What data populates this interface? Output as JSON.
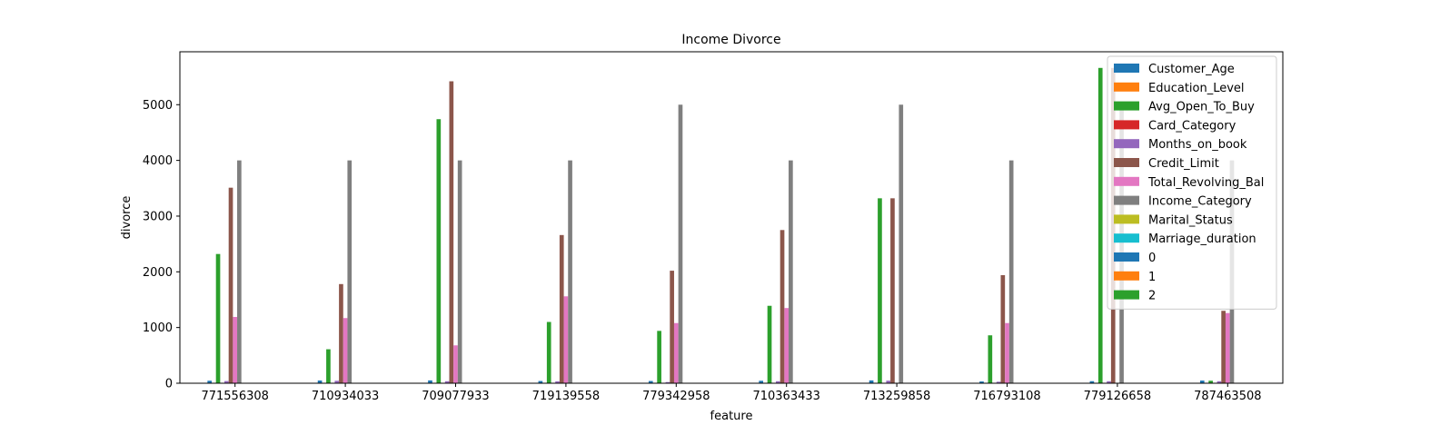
{
  "chart_data": {
    "type": "bar",
    "title": "Income Divorce",
    "xlabel": "feature",
    "ylabel": "divorce",
    "ylim": [
      0,
      5950
    ],
    "yticks": [
      0,
      1000,
      2000,
      3000,
      4000,
      5000
    ],
    "grid": false,
    "legend_position": "top-right",
    "categories": [
      "771556308",
      "710934033",
      "709077933",
      "719139558",
      "779342958",
      "710363433",
      "713259858",
      "716793108",
      "779126658",
      "787463508"
    ],
    "series": [
      {
        "name": "Customer_Age",
        "color": "#1f77b4",
        "values": [
          45,
          49,
          51,
          40,
          40,
          44,
          51,
          32,
          37,
          48
        ]
      },
      {
        "name": "Education_Level",
        "color": "#ff7f0e",
        "values": [
          2,
          3,
          3,
          2,
          1,
          1,
          3,
          2,
          2,
          1
        ]
      },
      {
        "name": "Avg_Open_To_Buy",
        "color": "#2ca02c",
        "values": [
          2320,
          610,
          4740,
          1100,
          940,
          1390,
          3320,
          860,
          5660,
          45
        ]
      },
      {
        "name": "Card_Category",
        "color": "#d62728",
        "values": [
          1,
          1,
          1,
          1,
          1,
          1,
          1,
          1,
          1,
          1
        ]
      },
      {
        "name": "Months_on_book",
        "color": "#9467bd",
        "values": [
          39,
          44,
          36,
          34,
          21,
          36,
          46,
          27,
          36,
          36
        ]
      },
      {
        "name": "Credit_Limit",
        "color": "#8c564b",
        "values": [
          3510,
          1780,
          5420,
          2660,
          2020,
          2750,
          3320,
          1940,
          5660,
          1300
        ]
      },
      {
        "name": "Total_Revolving_Bal",
        "color": "#e377c2",
        "values": [
          1190,
          1170,
          680,
          1560,
          1080,
          1350,
          0,
          1080,
          0,
          1260
        ]
      },
      {
        "name": "Income_Category",
        "color": "#7f7f7f",
        "values": [
          4000,
          4000,
          4000,
          4000,
          5000,
          4000,
          5000,
          4000,
          5000,
          4000
        ]
      },
      {
        "name": "Marital_Status",
        "color": "#bcbd22",
        "values": [
          0,
          0,
          0,
          0,
          0,
          0,
          0,
          0,
          0,
          0
        ]
      },
      {
        "name": "Marriage_duration",
        "color": "#17becf",
        "values": [
          0,
          0,
          0,
          0,
          0,
          0,
          0,
          0,
          0,
          0
        ]
      },
      {
        "name": "0",
        "color": "#1f77b4",
        "values": [
          0,
          0,
          0,
          0,
          0,
          0,
          0,
          0,
          0,
          0
        ]
      },
      {
        "name": "1",
        "color": "#ff7f0e",
        "values": [
          0,
          0,
          0,
          0,
          0,
          0,
          0,
          0,
          0,
          0
        ]
      },
      {
        "name": "2",
        "color": "#2ca02c",
        "values": [
          0,
          0,
          0,
          0,
          0,
          0,
          0,
          0,
          0,
          0
        ]
      }
    ]
  }
}
